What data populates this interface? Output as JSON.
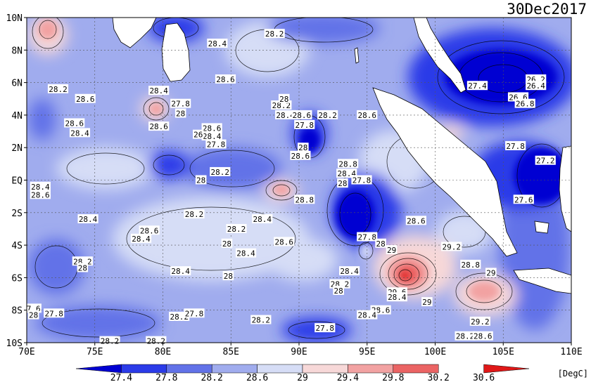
{
  "title": "30Dec2017",
  "units": "[DegC]",
  "map": {
    "lon_range": [
      70,
      110
    ],
    "lat_range": [
      -10,
      10
    ],
    "lon_ticks": [
      "70E",
      "75E",
      "80E",
      "85E",
      "90E",
      "95E",
      "100E",
      "105E",
      "110E"
    ],
    "lat_ticks": [
      "10N",
      "8N",
      "6N",
      "4N",
      "2N",
      "EQ",
      "2S",
      "4S",
      "6S",
      "8S",
      "10S"
    ],
    "grid": "dotted"
  },
  "colorbar": {
    "levels": [
      "27.4",
      "27.8",
      "28.2",
      "28.6",
      "29",
      "29.4",
      "29.8",
      "30.2",
      "30.6"
    ],
    "colors": [
      "#0000d2",
      "#2b3be8",
      "#6272e8",
      "#a0acee",
      "#d6ddf6",
      "#f7d8d8",
      "#f2a2a2",
      "#eb6464",
      "#e01818"
    ]
  },
  "contour_labels": [
    {
      "text": "28.2",
      "lon": 88.2,
      "lat": 9.0
    },
    {
      "text": "28.4",
      "lon": 84.0,
      "lat": 8.4
    },
    {
      "text": "28.6",
      "lon": 84.6,
      "lat": 6.2
    },
    {
      "text": "28.2",
      "lon": 72.3,
      "lat": 5.6
    },
    {
      "text": "28.6",
      "lon": 74.3,
      "lat": 5.0
    },
    {
      "text": "28.4",
      "lon": 79.7,
      "lat": 5.5
    },
    {
      "text": "27.8",
      "lon": 81.3,
      "lat": 4.7
    },
    {
      "text": "28",
      "lon": 81.3,
      "lat": 4.1
    },
    {
      "text": "28.6",
      "lon": 79.7,
      "lat": 3.3
    },
    {
      "text": "28.6",
      "lon": 73.5,
      "lat": 3.5
    },
    {
      "text": "28.4",
      "lon": 73.9,
      "lat": 2.9
    },
    {
      "text": "28.6",
      "lon": 83.6,
      "lat": 3.2
    },
    {
      "text": "28.4",
      "lon": 83.6,
      "lat": 2.7
    },
    {
      "text": "27.8",
      "lon": 83.9,
      "lat": 2.2
    },
    {
      "text": "28.2",
      "lon": 88.7,
      "lat": 4.6
    },
    {
      "text": "28.4",
      "lon": 89.0,
      "lat": 4.0
    },
    {
      "text": "28.6",
      "lon": 90.2,
      "lat": 4.0
    },
    {
      "text": "27.8",
      "lon": 90.4,
      "lat": 3.4
    },
    {
      "text": "28.2",
      "lon": 92.1,
      "lat": 4.0
    },
    {
      "text": "28.6",
      "lon": 95.0,
      "lat": 4.0
    },
    {
      "text": "28.6",
      "lon": 90.1,
      "lat": 1.5
    },
    {
      "text": "28.2",
      "lon": 84.2,
      "lat": 0.5
    },
    {
      "text": "28",
      "lon": 82.8,
      "lat": 0.0
    },
    {
      "text": "28.8",
      "lon": 93.6,
      "lat": 1.0
    },
    {
      "text": "28.4",
      "lon": 93.5,
      "lat": 0.4
    },
    {
      "text": "28",
      "lon": 93.2,
      "lat": -0.2
    },
    {
      "text": "27.8",
      "lon": 94.6,
      "lat": 0.0
    },
    {
      "text": "28.4",
      "lon": 71.0,
      "lat": -0.4
    },
    {
      "text": "28.6",
      "lon": 71.0,
      "lat": -0.9
    },
    {
      "text": "28.8",
      "lon": 90.4,
      "lat": -1.2
    },
    {
      "text": "27.6",
      "lon": 106.5,
      "lat": -1.2
    },
    {
      "text": "27.8",
      "lon": 105.9,
      "lat": 2.1
    },
    {
      "text": "27.2",
      "lon": 108.1,
      "lat": 1.2
    },
    {
      "text": "28.4",
      "lon": 74.5,
      "lat": -2.4
    },
    {
      "text": "28.2",
      "lon": 82.3,
      "lat": -2.1
    },
    {
      "text": "28.4",
      "lon": 87.3,
      "lat": -2.4
    },
    {
      "text": "28.6",
      "lon": 98.6,
      "lat": -2.5
    },
    {
      "text": "28.6",
      "lon": 79.0,
      "lat": -3.1
    },
    {
      "text": "28.4",
      "lon": 78.4,
      "lat": -3.6
    },
    {
      "text": "28.2",
      "lon": 85.4,
      "lat": -3.0
    },
    {
      "text": "28",
      "lon": 84.7,
      "lat": -3.9
    },
    {
      "text": "28.6",
      "lon": 88.9,
      "lat": -3.8
    },
    {
      "text": "28.4",
      "lon": 86.1,
      "lat": -4.5
    },
    {
      "text": "29.2",
      "lon": 101.2,
      "lat": -4.1
    },
    {
      "text": "28.8",
      "lon": 102.6,
      "lat": -5.2
    },
    {
      "text": "29",
      "lon": 104.1,
      "lat": -5.7
    },
    {
      "text": "28.2",
      "lon": 74.1,
      "lat": -5.0
    },
    {
      "text": "28",
      "lon": 74.1,
      "lat": -5.4
    },
    {
      "text": "28.4",
      "lon": 81.3,
      "lat": -5.6
    },
    {
      "text": "28",
      "lon": 84.8,
      "lat": -5.9
    },
    {
      "text": "28.4",
      "lon": 93.7,
      "lat": -5.6
    },
    {
      "text": "28.2",
      "lon": 93.0,
      "lat": -6.4
    },
    {
      "text": "28",
      "lon": 92.9,
      "lat": -6.8
    },
    {
      "text": "29.6",
      "lon": 97.2,
      "lat": -6.9
    },
    {
      "text": "28.4",
      "lon": 97.2,
      "lat": -7.2
    },
    {
      "text": "29",
      "lon": 99.4,
      "lat": -7.5
    },
    {
      "text": "28.6",
      "lon": 96.0,
      "lat": -8.0
    },
    {
      "text": "28.4",
      "lon": 95.0,
      "lat": -8.3
    },
    {
      "text": "7.6",
      "lon": 70.5,
      "lat": -7.9
    },
    {
      "text": "28",
      "lon": 70.5,
      "lat": -8.3
    },
    {
      "text": "27.8",
      "lon": 72.0,
      "lat": -8.2
    },
    {
      "text": "28.2",
      "lon": 81.2,
      "lat": -8.4
    },
    {
      "text": "27.8",
      "lon": 82.3,
      "lat": -8.2
    },
    {
      "text": "28.2",
      "lon": 87.2,
      "lat": -8.6
    },
    {
      "text": "27.8",
      "lon": 91.9,
      "lat": -9.1
    },
    {
      "text": "29.2",
      "lon": 103.3,
      "lat": -8.7
    },
    {
      "text": "28.2",
      "lon": 102.2,
      "lat": -9.6
    },
    {
      "text": "28.6",
      "lon": 103.5,
      "lat": -9.6
    },
    {
      "text": "28.2",
      "lon": 76.1,
      "lat": -9.9
    },
    {
      "text": "28.2",
      "lon": 79.5,
      "lat": -9.9
    },
    {
      "text": "27.4",
      "lon": 103.1,
      "lat": 5.8
    },
    {
      "text": "26.2",
      "lon": 107.4,
      "lat": 6.2
    },
    {
      "text": "26.4",
      "lon": 107.4,
      "lat": 5.8
    },
    {
      "text": "26.6",
      "lon": 106.1,
      "lat": 5.1
    },
    {
      "text": "26.8",
      "lon": 106.6,
      "lat": 4.7
    },
    {
      "text": "28",
      "lon": 88.9,
      "lat": 5.0
    },
    {
      "text": "28",
      "lon": 90.3,
      "lat": 2.0
    },
    {
      "text": "27.8",
      "lon": 95.0,
      "lat": -3.5
    },
    {
      "text": "28",
      "lon": 96.0,
      "lat": -3.9
    },
    {
      "text": "29",
      "lon": 96.8,
      "lat": -4.3
    },
    {
      "text": "26",
      "lon": 82.6,
      "lat": 2.8
    }
  ]
}
